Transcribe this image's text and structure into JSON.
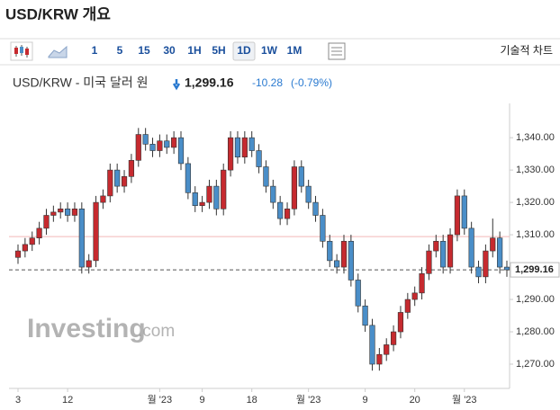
{
  "header": {
    "title": "USD/KRW 개요"
  },
  "toolbar": {
    "intervals": [
      "1",
      "5",
      "15",
      "30",
      "1H",
      "5H",
      "1D",
      "1W",
      "1M"
    ],
    "active": "1D",
    "tech_chart": "기술적 차트"
  },
  "quote": {
    "name": "USD/KRW - 미국 달러 원",
    "price": "1,299.16",
    "change": "-10.28",
    "change_pct": "(-0.79%)"
  },
  "chart_data": {
    "type": "candlestick",
    "watermark": {
      "brand": "Investing",
      "suffix": ".com"
    },
    "categories": [
      "3",
      null,
      null,
      null,
      null,
      null,
      null,
      "12",
      null,
      null,
      null,
      null,
      null,
      null,
      null,
      null,
      null,
      null,
      null,
      null,
      "월 '23",
      null,
      null,
      null,
      null,
      null,
      "9",
      null,
      null,
      null,
      null,
      null,
      null,
      "18",
      null,
      null,
      null,
      null,
      null,
      null,
      null,
      "월 '23",
      null,
      null,
      null,
      null,
      null,
      null,
      null,
      "9",
      null,
      null,
      null,
      null,
      null,
      null,
      "20",
      null,
      null,
      null,
      null,
      null,
      null,
      "월 '23",
      null,
      null,
      null,
      null,
      null,
      null
    ],
    "open": [
      1303,
      1305,
      1307,
      1309,
      1312,
      1316,
      1317,
      1318,
      1316,
      1318,
      1300,
      1302,
      1320,
      1322,
      1330,
      1325,
      1328,
      1333,
      1341,
      1338,
      1336,
      1339,
      1337,
      1340,
      1332,
      1323,
      1319,
      1320,
      1325,
      1318,
      1330,
      1340,
      1334,
      1340,
      1336,
      1331,
      1325,
      1320,
      1315,
      1318,
      1331,
      1325,
      1320,
      1316,
      1308,
      1302,
      1300,
      1308,
      1296,
      1288,
      1282,
      1270,
      1273,
      1276,
      1280,
      1286,
      1290,
      1292,
      1298,
      1305,
      1308,
      1300,
      1310,
      1322,
      1312,
      1300,
      1297,
      1305,
      1309,
      1300
    ],
    "high": [
      1307,
      1309,
      1311,
      1314,
      1318,
      1319,
      1320,
      1320,
      1320,
      1320,
      1304,
      1322,
      1324,
      1332,
      1332,
      1330,
      1335,
      1343,
      1343,
      1340,
      1341,
      1341,
      1342,
      1342,
      1334,
      1325,
      1322,
      1327,
      1327,
      1332,
      1342,
      1342,
      1342,
      1342,
      1338,
      1333,
      1327,
      1322,
      1320,
      1333,
      1333,
      1327,
      1322,
      1318,
      1310,
      1304,
      1310,
      1310,
      1298,
      1290,
      1284,
      1275,
      1278,
      1282,
      1288,
      1292,
      1294,
      1300,
      1307,
      1310,
      1310,
      1312,
      1324,
      1324,
      1314,
      1302,
      1307,
      1315,
      1311,
      1302
    ],
    "low": [
      1301,
      1303,
      1305,
      1307,
      1310,
      1314,
      1315,
      1314,
      1314,
      1298,
      1298,
      1300,
      1318,
      1320,
      1323,
      1323,
      1326,
      1331,
      1336,
      1334,
      1334,
      1335,
      1335,
      1330,
      1321,
      1317,
      1317,
      1318,
      1316,
      1316,
      1328,
      1332,
      1332,
      1334,
      1329,
      1323,
      1318,
      1313,
      1313,
      1316,
      1323,
      1318,
      1314,
      1306,
      1300,
      1298,
      1298,
      1294,
      1286,
      1280,
      1268,
      1268,
      1271,
      1274,
      1278,
      1284,
      1288,
      1290,
      1296,
      1303,
      1298,
      1298,
      1308,
      1310,
      1298,
      1295,
      1295,
      1303,
      1298,
      1297
    ],
    "close": [
      1305,
      1307,
      1309,
      1312,
      1316,
      1317,
      1318,
      1316,
      1318,
      1300,
      1302,
      1320,
      1322,
      1330,
      1325,
      1328,
      1333,
      1341,
      1338,
      1336,
      1339,
      1337,
      1340,
      1332,
      1323,
      1319,
      1320,
      1325,
      1318,
      1330,
      1340,
      1334,
      1340,
      1336,
      1331,
      1325,
      1320,
      1315,
      1318,
      1331,
      1325,
      1320,
      1316,
      1308,
      1302,
      1300,
      1308,
      1296,
      1288,
      1282,
      1270,
      1273,
      1276,
      1280,
      1286,
      1290,
      1292,
      1298,
      1305,
      1308,
      1300,
      1310,
      1322,
      1312,
      1300,
      1297,
      1305,
      1309,
      1300,
      1299.16
    ],
    "up_color": "#c62a2f",
    "down_color": "#4a8ec8",
    "prev_close": 1309.44,
    "last": 1299.16,
    "ylim": [
      1262.5,
      1350.6
    ],
    "yticks": [
      {
        "value": 1270,
        "label": "1,270.00"
      },
      {
        "value": 1280,
        "label": "1,280.00"
      },
      {
        "value": 1290,
        "label": "1,290.00"
      },
      {
        "value": 1310,
        "label": "1,310.00"
      },
      {
        "value": 1320,
        "label": "1,320.00"
      },
      {
        "value": 1330,
        "label": "1,330.00"
      },
      {
        "value": 1340,
        "label": "1,340.00"
      }
    ]
  }
}
